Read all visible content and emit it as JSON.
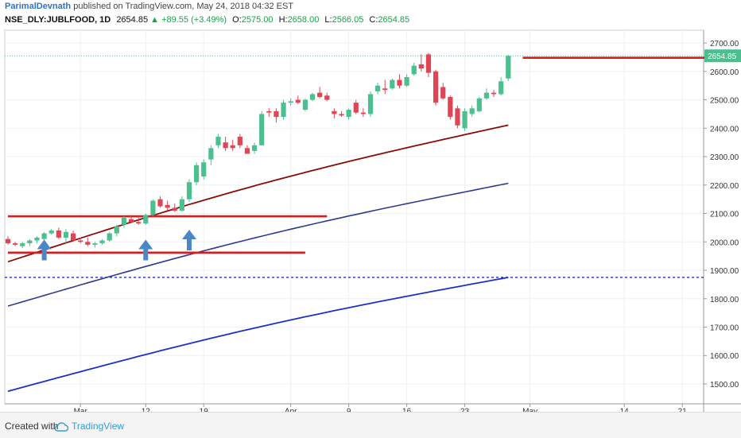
{
  "header": {
    "author": "ParimalDevnath",
    "published_text": "published on TradingView.com, May 24, 2018 04:32 EST",
    "symbol": "NSE_DLY:JUBLFOOD, 1D",
    "last": "2654.85",
    "change": "+89.55 (+3.49%)",
    "open_label": "O:",
    "open": "2575.00",
    "high_label": "H:",
    "high": "2658.00",
    "low_label": "L:",
    "low": "2566.05",
    "close_label": "C:",
    "close": "2654.85"
  },
  "footer": {
    "created_with": "Created with",
    "brand": "TradingView"
  },
  "colors": {
    "up": "#4cbf8f",
    "down": "#e04555",
    "sma_short": "#8b0a0a",
    "sma_mid": "#2e3b8f",
    "sma_long": "#1f2fc9",
    "level": "#e01a1a",
    "dotted": "#1f2fc9",
    "arrow": "#4a86c8"
  },
  "chart_data": {
    "type": "candlestick",
    "y_axis_ticks": [
      1500,
      1600,
      1700,
      1800,
      1900,
      2000,
      2100,
      2200,
      2300,
      2400,
      2500,
      2600,
      2700
    ],
    "y_axis_labels": [
      "1500.00",
      "1600.00",
      "1700.00",
      "1800.00",
      "1900.00",
      "2000.00",
      "2100.00",
      "2200.00",
      "2300.00",
      "2400.00",
      "2500.00",
      "2600.00",
      "2700.00"
    ],
    "ylim": [
      1430,
      2745
    ],
    "x_tick_labels": [
      {
        "label": "Mar",
        "index": 10
      },
      {
        "label": "12",
        "index": 19
      },
      {
        "label": "19",
        "index": 27
      },
      {
        "label": "Apr",
        "index": 39
      },
      {
        "label": "9",
        "index": 47
      },
      {
        "label": "16",
        "index": 55
      },
      {
        "label": "23",
        "index": 63
      },
      {
        "label": "May",
        "index": 72
      },
      {
        "label": "14",
        "index": 85
      },
      {
        "label": "21",
        "index": 93
      }
    ],
    "last_price_label": "2654.85",
    "candles": [
      [
        2010,
        2020,
        1990,
        1995
      ],
      [
        1995,
        2000,
        1985,
        1990
      ],
      [
        1985,
        2000,
        1978,
        1995
      ],
      [
        1995,
        2010,
        1985,
        2005
      ],
      [
        2005,
        2020,
        1995,
        2015
      ],
      [
        2010,
        2035,
        2000,
        2030
      ],
      [
        2030,
        2045,
        2025,
        2040
      ],
      [
        2040,
        2050,
        2010,
        2015
      ],
      [
        2015,
        2045,
        1995,
        2035
      ],
      [
        2030,
        2040,
        2000,
        2005
      ],
      [
        2005,
        2015,
        1995,
        2000
      ],
      [
        2000,
        2015,
        1985,
        1990
      ],
      [
        1990,
        2000,
        1980,
        1995
      ],
      [
        1995,
        2010,
        1990,
        2005
      ],
      [
        2005,
        2035,
        2000,
        2030
      ],
      [
        2030,
        2060,
        2020,
        2055
      ],
      [
        2060,
        2090,
        2050,
        2085
      ],
      [
        2080,
        2095,
        2065,
        2070
      ],
      [
        2070,
        2090,
        2060,
        2065
      ],
      [
        2065,
        2100,
        2060,
        2095
      ],
      [
        2095,
        2150,
        2090,
        2145
      ],
      [
        2150,
        2160,
        2120,
        2125
      ],
      [
        2130,
        2145,
        2110,
        2120
      ],
      [
        2120,
        2135,
        2105,
        2110
      ],
      [
        2110,
        2160,
        2105,
        2150
      ],
      [
        2150,
        2220,
        2140,
        2210
      ],
      [
        2210,
        2280,
        2200,
        2270
      ],
      [
        2230,
        2290,
        2220,
        2280
      ],
      [
        2290,
        2340,
        2270,
        2330
      ],
      [
        2340,
        2380,
        2330,
        2370
      ],
      [
        2350,
        2370,
        2320,
        2330
      ],
      [
        2340,
        2360,
        2320,
        2330
      ],
      [
        2370,
        2380,
        2330,
        2340
      ],
      [
        2330,
        2340,
        2310,
        2310
      ],
      [
        2320,
        2350,
        2310,
        2340
      ],
      [
        2340,
        2460,
        2340,
        2450
      ],
      [
        2460,
        2470,
        2440,
        2455
      ],
      [
        2460,
        2470,
        2420,
        2440
      ],
      [
        2440,
        2500,
        2430,
        2490
      ],
      [
        2490,
        2505,
        2480,
        2495
      ],
      [
        2500,
        2515,
        2485,
        2490
      ],
      [
        2465,
        2505,
        2460,
        2500
      ],
      [
        2500,
        2525,
        2495,
        2520
      ],
      [
        2525,
        2545,
        2505,
        2510
      ],
      [
        2515,
        2525,
        2495,
        2500
      ],
      [
        2460,
        2470,
        2435,
        2450
      ],
      [
        2450,
        2460,
        2440,
        2445
      ],
      [
        2440,
        2470,
        2430,
        2465
      ],
      [
        2490,
        2500,
        2450,
        2455
      ],
      [
        2455,
        2470,
        2440,
        2450
      ],
      [
        2450,
        2530,
        2440,
        2520
      ],
      [
        2530,
        2560,
        2520,
        2550
      ],
      [
        2540,
        2570,
        2520,
        2535
      ],
      [
        2540,
        2575,
        2535,
        2570
      ],
      [
        2570,
        2590,
        2540,
        2550
      ],
      [
        2550,
        2590,
        2545,
        2580
      ],
      [
        2590,
        2630,
        2585,
        2620
      ],
      [
        2625,
        2660,
        2600,
        2610
      ],
      [
        2660,
        2665,
        2580,
        2595
      ],
      [
        2600,
        2605,
        2480,
        2490
      ],
      [
        2545,
        2560,
        2500,
        2505
      ],
      [
        2510,
        2515,
        2430,
        2440
      ],
      [
        2470,
        2480,
        2400,
        2410
      ],
      [
        2400,
        2470,
        2390,
        2460
      ],
      [
        2450,
        2480,
        2440,
        2470
      ],
      [
        2460,
        2510,
        2455,
        2505
      ],
      [
        2505,
        2540,
        2500,
        2525
      ],
      [
        2525,
        2535,
        2510,
        2520
      ],
      [
        2520,
        2580,
        2515,
        2565
      ],
      [
        2575,
        2658,
        2566,
        2655
      ]
    ],
    "sma_short": {
      "name": "",
      "values": [
        1930,
        2411
      ]
    },
    "sma_mid": {
      "name": "",
      "values": [
        1774,
        2206
      ]
    },
    "sma_long": {
      "name": "",
      "values": [
        1474,
        1875
      ]
    },
    "support_levels": [
      {
        "value": 2090,
        "from": 0,
        "to": 44
      },
      {
        "value": 1962,
        "from": 0,
        "to": 41
      },
      {
        "value": 2648,
        "from": 71,
        "to": 117
      }
    ],
    "dotted_level": 1875,
    "last_price_line": 2654.85,
    "arrows": [
      {
        "index": 5,
        "price": 1935
      },
      {
        "index": 19,
        "price": 1935
      },
      {
        "index": 25,
        "price": 1970
      }
    ]
  }
}
